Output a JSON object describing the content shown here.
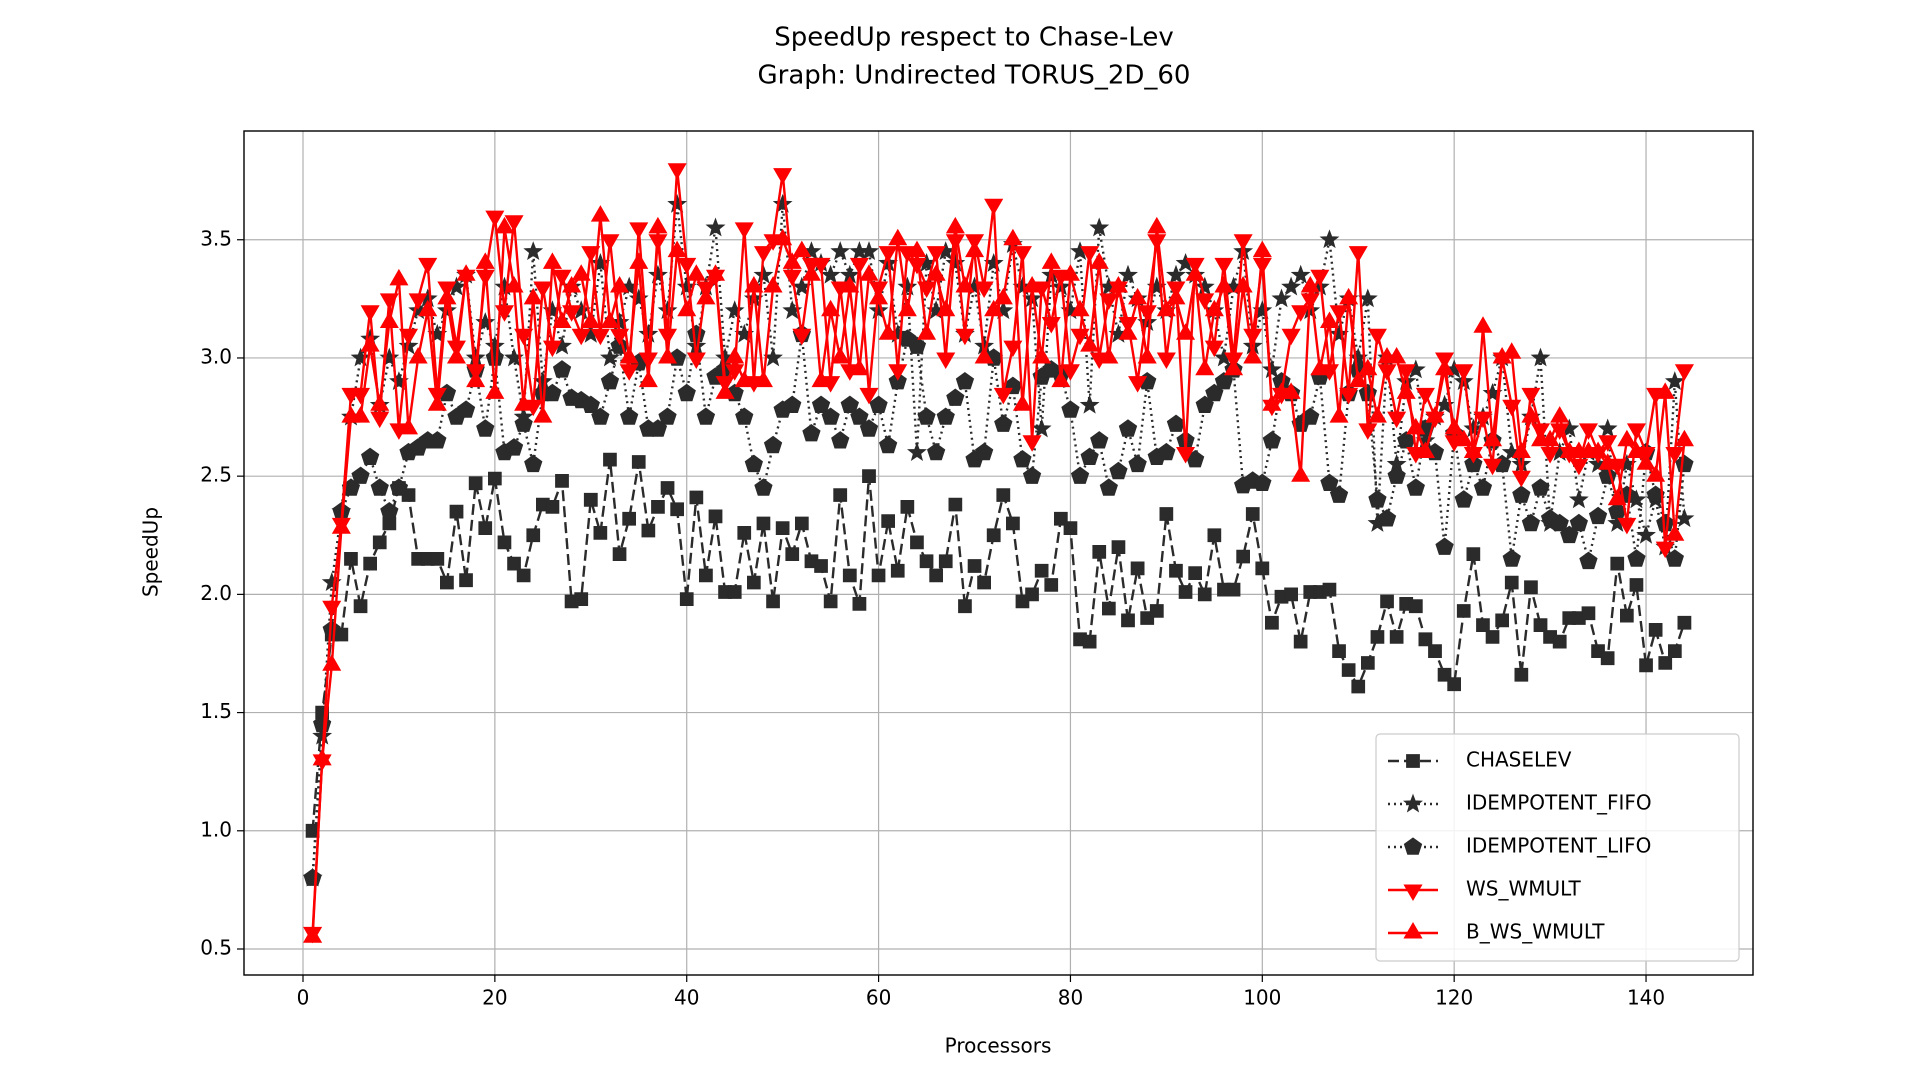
{
  "chart_data": {
    "type": "line",
    "title": "SpeedUp respect to Chase-Lev",
    "subtitle": "Graph: Undirected TORUS_2D_60",
    "x_label": "Processors",
    "y_label": "SpeedUp",
    "xlim": [
      -6.15,
      151.15
    ],
    "ylim": [
      0.39,
      3.96
    ],
    "xticks": [
      0,
      20,
      40,
      60,
      80,
      100,
      120,
      140
    ],
    "yticks": [
      0.5,
      {
        "value": 1.0,
        "label": "1.0"
      },
      1.5,
      {
        "value": 2.0,
        "label": "2.0"
      },
      2.5,
      {
        "value": 3.0,
        "label": "3.0"
      },
      3.5
    ],
    "grid": true,
    "legend": "lower right",
    "x": [
      1,
      2,
      3,
      4,
      5,
      6,
      7,
      8,
      9,
      10,
      11,
      12,
      13,
      14,
      15,
      16,
      17,
      18,
      19,
      20,
      21,
      22,
      23,
      24,
      25,
      26,
      27,
      28,
      29,
      30,
      31,
      32,
      33,
      34,
      35,
      36,
      37,
      38,
      39,
      40,
      41,
      42,
      43,
      44,
      45,
      46,
      47,
      48,
      49,
      50,
      51,
      52,
      53,
      54,
      55,
      56,
      57,
      58,
      59,
      60,
      61,
      62,
      63,
      64,
      65,
      66,
      67,
      68,
      69,
      70,
      71,
      72,
      73,
      74,
      75,
      76,
      77,
      78,
      79,
      80,
      81,
      82,
      83,
      84,
      85,
      86,
      87,
      88,
      89,
      90,
      91,
      92,
      93,
      94,
      95,
      96,
      97,
      98,
      99,
      100,
      101,
      102,
      103,
      104,
      105,
      106,
      107,
      108,
      109,
      110,
      111,
      112,
      113,
      114,
      115,
      116,
      117,
      118,
      119,
      120,
      121,
      122,
      123,
      124,
      125,
      126,
      127,
      128,
      129,
      130,
      131,
      132,
      133,
      134,
      135,
      136,
      137,
      138,
      139,
      140,
      141,
      142,
      143,
      144
    ],
    "series": [
      {
        "name": "CHASELEV",
        "color": "#2b2b2b",
        "marker": "square",
        "linestyle": "dashed",
        "values": [
          1.0,
          1.5,
          1.83,
          1.83,
          2.15,
          1.95,
          2.13,
          2.22,
          2.3,
          2.45,
          2.42,
          2.15,
          2.15,
          2.15,
          2.05,
          2.35,
          2.06,
          2.47,
          2.28,
          2.49,
          2.22,
          2.13,
          2.08,
          2.25,
          2.38,
          2.37,
          2.48,
          1.97,
          1.98,
          2.4,
          2.26,
          2.57,
          2.17,
          2.32,
          2.56,
          2.27,
          2.37,
          2.45,
          2.36,
          1.98,
          2.41,
          2.08,
          2.33,
          2.01,
          2.01,
          2.26,
          2.05,
          2.3,
          1.97,
          2.28,
          2.17,
          2.3,
          2.14,
          2.12,
          1.97,
          2.42,
          2.08,
          1.96,
          2.5,
          2.08,
          2.31,
          2.1,
          2.37,
          2.22,
          2.14,
          2.08,
          2.14,
          2.38,
          1.95,
          2.12,
          2.05,
          2.25,
          2.42,
          2.3,
          1.97,
          2.0,
          2.1,
          2.04,
          2.32,
          2.28,
          1.81,
          1.8,
          2.18,
          1.94,
          2.2,
          1.89,
          2.11,
          1.9,
          1.93,
          2.34,
          2.1,
          2.01,
          2.09,
          2.0,
          2.25,
          2.02,
          2.02,
          2.16,
          2.34,
          2.11,
          1.88,
          1.99,
          2.0,
          1.8,
          2.01,
          2.01,
          2.02,
          1.76,
          1.68,
          1.61,
          1.71,
          1.82,
          1.97,
          1.82,
          1.96,
          1.95,
          1.81,
          1.76,
          1.66,
          1.62,
          1.93,
          2.17,
          1.87,
          1.82,
          1.89,
          2.05,
          1.66,
          2.03,
          1.87,
          1.82,
          1.8,
          1.9,
          1.9,
          1.92,
          1.76,
          1.73,
          2.13,
          1.91,
          2.04,
          1.7,
          1.85,
          1.71,
          1.76,
          1.88
        ]
      },
      {
        "name": "IDEMPOTENT_FIFO",
        "color": "#2b2b2b",
        "marker": "star",
        "linestyle": "dotted",
        "values": [
          0.8,
          1.4,
          2.05,
          2.35,
          2.75,
          3.0,
          3.08,
          2.8,
          3.0,
          2.9,
          3.05,
          3.2,
          3.25,
          3.1,
          3.2,
          3.3,
          3.35,
          3.0,
          3.15,
          3.05,
          3.3,
          3.0,
          2.75,
          3.45,
          2.9,
          3.2,
          3.05,
          3.3,
          3.2,
          3.1,
          3.4,
          3.0,
          3.15,
          3.3,
          3.25,
          3.1,
          3.35,
          3.2,
          3.65,
          3.3,
          3.05,
          3.3,
          3.55,
          3.0,
          3.2,
          3.1,
          3.25,
          3.35,
          3.0,
          3.65,
          3.2,
          3.3,
          3.45,
          3.4,
          3.35,
          3.45,
          3.35,
          3.45,
          3.45,
          3.2,
          3.4,
          3.1,
          3.3,
          2.6,
          3.4,
          3.2,
          3.45,
          3.4,
          3.1,
          3.3,
          3.05,
          3.4,
          3.2,
          3.48,
          3.3,
          3.25,
          2.7,
          3.35,
          3.3,
          3.2,
          3.45,
          2.8,
          3.55,
          3.3,
          3.1,
          3.35,
          3.25,
          3.15,
          3.3,
          3.2,
          3.35,
          3.4,
          3.35,
          3.3,
          3.2,
          3.0,
          3.3,
          3.45,
          3.05,
          3.2,
          2.95,
          3.25,
          3.3,
          3.35,
          3.2,
          3.3,
          3.5,
          3.1,
          3.25,
          3.0,
          3.25,
          2.3,
          3.0,
          2.55,
          2.9,
          2.95,
          2.65,
          2.75,
          2.8,
          2.95,
          2.9,
          2.7,
          2.75,
          2.85,
          3.0,
          2.6,
          2.55,
          2.75,
          3.0,
          2.3,
          2.6,
          2.7,
          2.4,
          2.6,
          2.55,
          2.7,
          2.3,
          2.55,
          2.4,
          2.25,
          2.4,
          2.2,
          2.9,
          2.32
        ]
      },
      {
        "name": "IDEMPOTENT_LIFO",
        "color": "#2b2b2b",
        "marker": "pentagon",
        "linestyle": "dotted",
        "values": [
          0.8,
          1.45,
          1.85,
          2.35,
          2.45,
          2.5,
          2.58,
          2.45,
          2.35,
          2.45,
          2.6,
          2.62,
          2.65,
          2.65,
          2.85,
          2.75,
          2.78,
          2.95,
          2.7,
          3.0,
          2.6,
          2.62,
          2.72,
          2.55,
          2.85,
          2.85,
          2.95,
          2.83,
          2.82,
          2.8,
          2.75,
          2.9,
          3.05,
          2.75,
          2.98,
          2.7,
          2.7,
          2.75,
          3.0,
          2.85,
          3.1,
          2.75,
          2.92,
          2.95,
          2.85,
          2.75,
          2.55,
          2.45,
          2.63,
          2.78,
          2.8,
          3.1,
          2.68,
          2.8,
          2.75,
          2.65,
          2.8,
          2.75,
          2.7,
          2.8,
          2.63,
          2.9,
          3.08,
          3.05,
          2.75,
          2.6,
          2.75,
          2.83,
          2.9,
          2.57,
          2.6,
          3.0,
          2.72,
          2.88,
          2.57,
          2.5,
          2.92,
          2.95,
          2.93,
          2.78,
          2.5,
          2.58,
          2.65,
          2.45,
          2.52,
          2.7,
          2.55,
          2.9,
          2.58,
          2.6,
          2.72,
          2.65,
          2.57,
          2.8,
          2.85,
          2.9,
          2.95,
          2.46,
          2.48,
          2.47,
          2.65,
          2.9,
          2.85,
          2.72,
          2.75,
          2.92,
          2.47,
          2.42,
          2.85,
          2.95,
          2.85,
          2.4,
          2.32,
          2.5,
          2.65,
          2.45,
          2.7,
          2.6,
          2.2,
          2.68,
          2.4,
          2.55,
          2.45,
          2.65,
          2.55,
          2.15,
          2.42,
          2.3,
          2.45,
          2.32,
          2.3,
          2.25,
          2.3,
          2.14,
          2.33,
          2.5,
          2.35,
          2.42,
          2.15,
          2.6,
          2.42,
          2.3,
          2.15,
          2.55
        ]
      },
      {
        "name": "WS_WMULT",
        "color": "#ff0000",
        "marker": "triangle-down",
        "linestyle": "solid",
        "values": [
          0.57,
          1.3,
          1.95,
          2.3,
          2.85,
          2.85,
          3.2,
          2.75,
          3.25,
          2.7,
          3.1,
          3.25,
          3.4,
          2.85,
          3.3,
          3.05,
          3.35,
          2.95,
          3.35,
          3.6,
          3.2,
          3.58,
          3.1,
          2.8,
          3.3,
          3.05,
          3.35,
          3.2,
          3.1,
          3.45,
          3.1,
          3.5,
          3.1,
          2.95,
          3.55,
          3.0,
          3.5,
          3.1,
          3.8,
          3.4,
          3.0,
          3.3,
          3.35,
          2.9,
          2.95,
          3.55,
          2.9,
          3.45,
          3.5,
          3.78,
          3.35,
          3.1,
          3.4,
          3.4,
          2.9,
          3.3,
          2.95,
          3.4,
          2.85,
          3.3,
          3.45,
          2.95,
          3.45,
          3.4,
          3.3,
          3.45,
          3.0,
          3.5,
          3.1,
          3.5,
          3.3,
          3.65,
          2.85,
          3.05,
          3.45,
          2.65,
          3.3,
          3.15,
          3.35,
          2.95,
          3.1,
          3.45,
          3.0,
          3.25,
          3.3,
          3.15,
          2.9,
          3.2,
          3.5,
          3.0,
          3.3,
          2.6,
          3.4,
          3.25,
          3.05,
          3.4,
          3.0,
          3.5,
          3.1,
          3.4,
          2.8,
          2.85,
          3.1,
          3.2,
          3.25,
          3.35,
          2.95,
          3.2,
          2.85,
          3.45,
          2.7,
          3.1,
          2.95,
          2.75,
          2.95,
          2.6,
          2.85,
          2.75,
          3.0,
          2.65,
          2.95,
          2.6,
          2.75,
          2.55,
          3.0,
          2.8,
          2.5,
          2.85,
          2.7,
          2.6,
          2.7,
          2.6,
          2.55,
          2.7,
          2.6,
          2.65,
          2.55,
          2.3,
          2.7,
          2.6,
          2.85,
          2.2,
          2.6,
          2.95
        ]
      },
      {
        "name": "B_WS_WMULT",
        "color": "#ff0000",
        "marker": "triangle-up",
        "linestyle": "solid",
        "values": [
          0.55,
          1.3,
          1.7,
          2.28,
          2.75,
          2.75,
          3.05,
          2.8,
          3.15,
          3.33,
          2.7,
          3.0,
          3.2,
          2.8,
          3.25,
          3.0,
          3.35,
          2.9,
          3.4,
          2.85,
          3.55,
          3.3,
          2.8,
          3.25,
          2.75,
          3.4,
          3.15,
          3.3,
          3.35,
          3.15,
          3.6,
          3.15,
          3.3,
          3.0,
          3.4,
          2.9,
          3.55,
          3.0,
          3.45,
          3.2,
          3.35,
          3.25,
          3.35,
          2.85,
          3.0,
          2.9,
          3.3,
          2.9,
          3.3,
          3.5,
          3.4,
          3.45,
          3.35,
          2.9,
          3.2,
          3.0,
          3.3,
          2.95,
          3.35,
          3.25,
          3.1,
          3.5,
          3.2,
          3.45,
          3.1,
          3.35,
          3.2,
          3.55,
          3.3,
          3.45,
          3.0,
          3.2,
          3.25,
          3.5,
          2.8,
          3.3,
          3.0,
          3.4,
          2.9,
          3.35,
          3.2,
          3.05,
          3.4,
          3.0,
          3.3,
          3.1,
          3.25,
          3.0,
          3.55,
          3.2,
          3.25,
          3.1,
          3.35,
          2.95,
          3.2,
          3.3,
          2.95,
          3.3,
          3.0,
          3.45,
          2.8,
          2.85,
          2.85,
          2.5,
          3.3,
          2.95,
          3.15,
          2.75,
          3.25,
          2.9,
          2.95,
          2.75,
          3.0,
          3.0,
          2.85,
          2.7,
          2.6,
          2.75,
          2.95,
          2.7,
          2.65,
          2.6,
          3.13,
          2.65,
          3.0,
          3.02,
          2.6,
          2.75,
          2.65,
          2.65,
          2.75,
          2.6,
          2.6,
          2.6,
          2.6,
          2.55,
          2.4,
          2.65,
          2.6,
          2.55,
          2.5,
          2.85,
          2.25,
          2.65
        ]
      }
    ]
  }
}
